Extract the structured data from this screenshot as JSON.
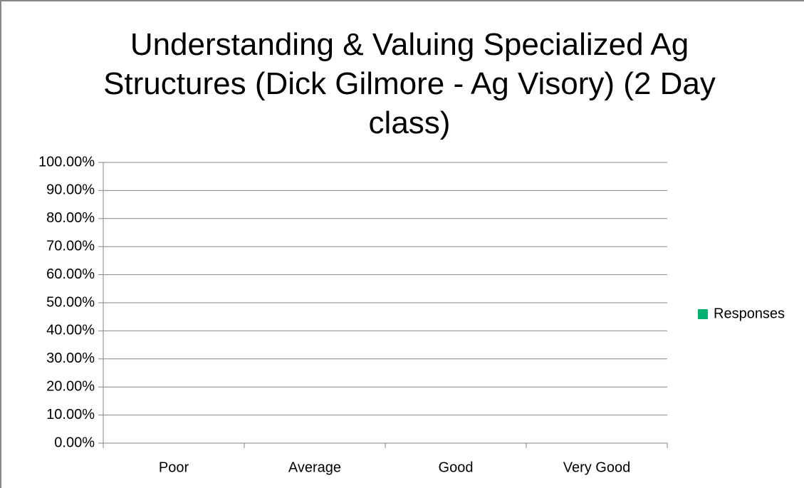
{
  "chart_data": {
    "type": "bar",
    "title": "Understanding & Valuing Specialized Ag Structures (Dick Gilmore - Ag Visory) (2 Day class)",
    "categories": [
      "Poor",
      "Average",
      "Good",
      "Very Good"
    ],
    "series": [
      {
        "name": "Responses",
        "color": "#00b26f",
        "values": [
          0,
          0,
          0,
          0
        ]
      }
    ],
    "ylim": [
      0,
      100
    ],
    "yticks": [
      {
        "value": 0,
        "label": "0.00%"
      },
      {
        "value": 10,
        "label": "10.00%"
      },
      {
        "value": 20,
        "label": "20.00%"
      },
      {
        "value": 30,
        "label": "30.00%"
      },
      {
        "value": 40,
        "label": "40.00%"
      },
      {
        "value": 50,
        "label": "50.00%"
      },
      {
        "value": 60,
        "label": "60.00%"
      },
      {
        "value": 70,
        "label": "70.00%"
      },
      {
        "value": 80,
        "label": "80.00%"
      },
      {
        "value": 90,
        "label": "90.00%"
      },
      {
        "value": 100,
        "label": "100.00%"
      }
    ],
    "grid": true,
    "legend": "right"
  }
}
